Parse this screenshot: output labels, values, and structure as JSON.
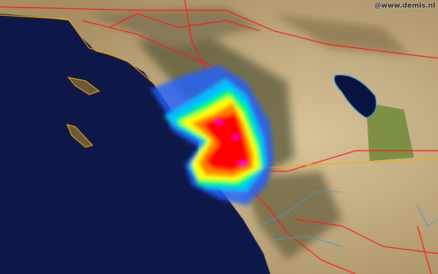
{
  "map": {
    "credit": "@www.demis.nl",
    "colors": {
      "ocean": "#0e1848",
      "land": "#a08a62",
      "desert": "#c9b48a",
      "mountains": "#5c5a3c",
      "roads": "#ff1a1a",
      "boundary": "#ffa500",
      "water_lines": "#3aa0d8",
      "lake": "#0a1240",
      "radar_scale": [
        "#2060ff",
        "#00c0ff",
        "#00ff60",
        "#ffff00",
        "#ff8000",
        "#ff0000",
        "#ff00ff"
      ]
    }
  }
}
